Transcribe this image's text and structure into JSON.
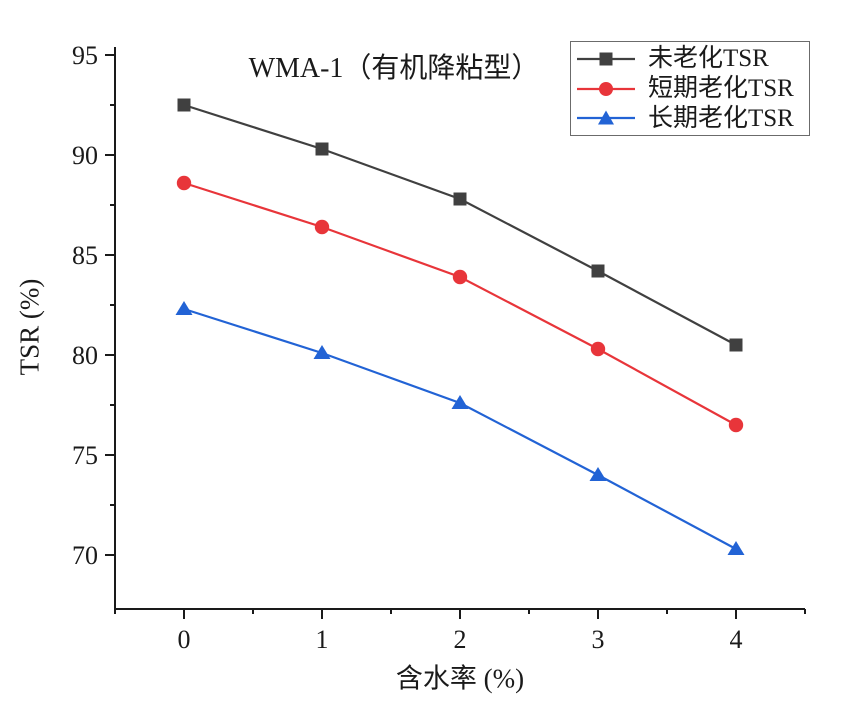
{
  "chart_data": {
    "type": "line",
    "title": "WMA-1（有机降粘型）",
    "xlabel": "含水率 (%)",
    "ylabel": "TSR (%)",
    "grid": false,
    "legend_position": "top-right",
    "x": [
      0,
      1,
      2,
      3,
      4
    ],
    "xlim": [
      -0.5,
      4.5
    ],
    "ylim": [
      67.3,
      95.4
    ],
    "x_ticks": [
      0,
      1,
      2,
      3,
      4
    ],
    "x_tick_labels": [
      "0",
      "1",
      "2",
      "3",
      "4"
    ],
    "x_minor_ticks": [
      -0.5,
      0.5,
      1.5,
      2.5,
      3.5,
      4.5
    ],
    "y_ticks": [
      70,
      75,
      80,
      85,
      90,
      95
    ],
    "y_tick_labels": [
      "70",
      "75",
      "80",
      "85",
      "90",
      "95"
    ],
    "y_minor_ticks": [
      72.5,
      77.5,
      82.5,
      87.5,
      92.5
    ],
    "axis_color": "#1a1a1a",
    "series": [
      {
        "name": "未老化TSR",
        "marker": "square",
        "color": "#404040",
        "values": [
          92.5,
          90.3,
          87.8,
          84.2,
          80.5
        ]
      },
      {
        "name": "短期老化TSR",
        "marker": "circle",
        "color": "#e8353a",
        "values": [
          88.6,
          86.4,
          83.9,
          80.3,
          76.5
        ]
      },
      {
        "name": "长期老化TSR",
        "marker": "triangle",
        "color": "#2263d5",
        "values": [
          82.3,
          80.1,
          77.6,
          74.0,
          70.3
        ]
      }
    ]
  }
}
